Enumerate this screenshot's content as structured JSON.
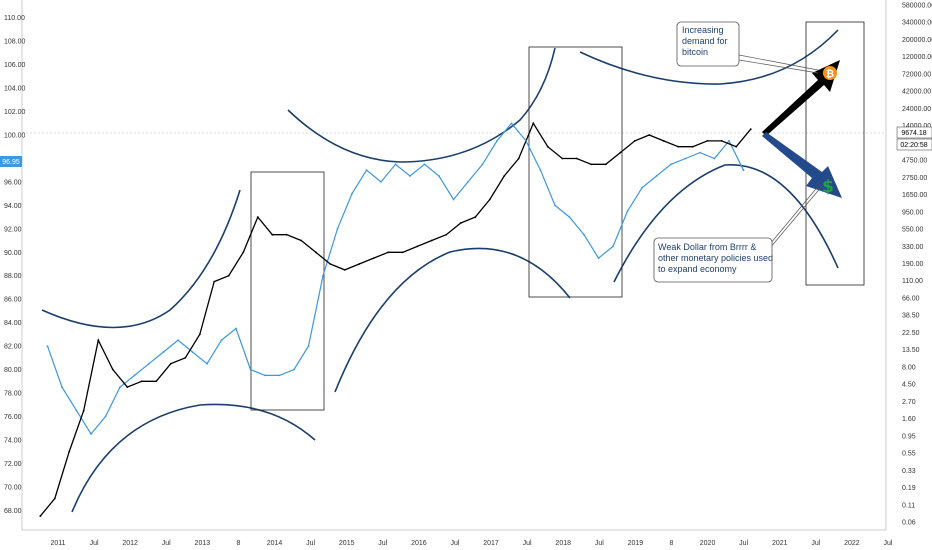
{
  "chart_data": {
    "type": "line",
    "title": "",
    "xlabel": "",
    "ylabel": "",
    "x_ticks": [
      "2011",
      "Jul",
      "2012",
      "Jul",
      "2013",
      "8",
      "2014",
      "Jul",
      "2015",
      "Jul",
      "2016",
      "Jul",
      "2017",
      "Jul",
      "2018",
      "Jul",
      "2019",
      "8",
      "2020",
      "Jul",
      "2021",
      "Jul",
      "2022",
      "Jul"
    ],
    "left_axis": {
      "ticks": [
        "110.00",
        "108.00",
        "106.00",
        "104.00",
        "102.00",
        "100.00",
        "98.00",
        "96.00",
        "94.00",
        "92.00",
        "90.00",
        "88.00",
        "86.00",
        "84.00",
        "82.00",
        "80.00",
        "78.00",
        "76.00",
        "74.00",
        "72.00",
        "70.00",
        "68.00"
      ],
      "range": [
        67,
        111
      ]
    },
    "right_axis": {
      "scale": "log",
      "ticks": [
        "580000.00",
        "340000.00",
        "200000.00",
        "120000.00",
        "72000.00",
        "42000.00",
        "24000.00",
        "14000.00",
        "8000.00",
        "4750.00",
        "2750.00",
        "1650.00",
        "950.00",
        "550.00",
        "330.00",
        "190.00",
        "110.00",
        "66.00",
        "38.50",
        "22.50",
        "13.50",
        "8.00",
        "4.50",
        "2.70",
        "1.60",
        "0.95",
        "0.55",
        "0.33",
        "0.19",
        "0.11",
        "0.06"
      ]
    },
    "series": [
      {
        "color": "#3d98e0",
        "last_value": "96.95",
        "x": [
          2010.8,
          2011.0,
          2011.2,
          2011.4,
          2011.6,
          2011.8,
          2012.0,
          2012.2,
          2012.4,
          2012.6,
          2012.8,
          2013.0,
          2013.2,
          2013.4,
          2013.6,
          2013.8,
          2014.0,
          2014.2,
          2014.4,
          2014.6,
          2014.8,
          2015.0,
          2015.2,
          2015.4,
          2015.6,
          2015.8,
          2016.0,
          2016.2,
          2016.4,
          2016.6,
          2016.8,
          2017.0,
          2017.2,
          2017.4,
          2017.6,
          2017.8,
          2018.0,
          2018.2,
          2018.4,
          2018.6,
          2018.8,
          2019.0,
          2019.2,
          2019.4,
          2019.6,
          2019.8,
          2020.0,
          2020.2,
          2020.4
        ],
        "y": [
          82.0,
          78.5,
          76.5,
          74.5,
          76.0,
          78.5,
          79.5,
          80.5,
          81.5,
          82.5,
          81.5,
          80.5,
          82.5,
          83.5,
          80.0,
          79.5,
          79.5,
          80.0,
          82.0,
          88.0,
          92.0,
          95.0,
          97.0,
          96.0,
          97.5,
          96.5,
          97.5,
          96.5,
          94.5,
          96.0,
          97.5,
          99.5,
          101.0,
          99.5,
          97.0,
          94.0,
          93.0,
          91.5,
          89.5,
          90.5,
          93.5,
          95.5,
          96.5,
          97.5,
          98.0,
          98.5,
          98.0,
          99.5,
          97.0
        ]
      },
      {
        "color": "#000000",
        "last_value": "9674.18",
        "x": [
          2010.7,
          2010.9,
          2011.1,
          2011.3,
          2011.5,
          2011.7,
          2011.9,
          2012.1,
          2012.3,
          2012.5,
          2012.7,
          2012.9,
          2013.1,
          2013.3,
          2013.5,
          2013.7,
          2013.9,
          2014.1,
          2014.3,
          2014.5,
          2014.7,
          2014.9,
          2015.1,
          2015.3,
          2015.5,
          2015.7,
          2015.9,
          2016.1,
          2016.3,
          2016.5,
          2016.7,
          2016.9,
          2017.1,
          2017.3,
          2017.5,
          2017.7,
          2017.9,
          2018.1,
          2018.3,
          2018.5,
          2018.7,
          2018.9,
          2019.1,
          2019.3,
          2019.5,
          2019.7,
          2019.9,
          2020.1,
          2020.3,
          2020.5
        ],
        "y": [
          67.5,
          69.0,
          73.0,
          76.5,
          82.5,
          80.0,
          78.5,
          79.0,
          79.0,
          80.5,
          81.0,
          83.0,
          87.5,
          88.0,
          90.0,
          93.0,
          91.5,
          91.5,
          91.0,
          90.0,
          89.0,
          88.5,
          89.0,
          89.5,
          90.0,
          90.0,
          90.5,
          91.0,
          91.5,
          92.5,
          93.0,
          94.5,
          96.5,
          98.0,
          101.0,
          99.0,
          98.0,
          98.0,
          97.5,
          97.5,
          98.5,
          99.5,
          100.0,
          99.5,
          99.0,
          99.0,
          99.5,
          99.5,
          99.0,
          100.5
        ]
      }
    ],
    "price_tag": "9674.18",
    "time_tag": "02:20:58",
    "annotations": [
      {
        "lines": [
          "Increasing",
          "demand for",
          "bitcoin"
        ]
      },
      {
        "lines": [
          "Weak Dollar from Brrrr &",
          "other monetary policies used",
          "to expand economy"
        ]
      }
    ],
    "icons": [
      "bitcoin-icon",
      "dollar-icon"
    ],
    "colors": {
      "blue_series": "#3d98e0",
      "bitcoin_series": "#000000",
      "arc": "#1b3f6b",
      "bitcoin": "#f7931a",
      "dollar": "#22a04a",
      "dollar_arrow": "#234a8a"
    }
  }
}
